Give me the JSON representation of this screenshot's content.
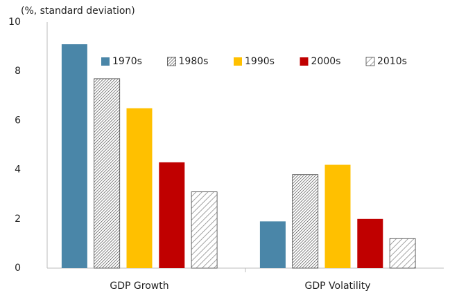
{
  "chart_data": {
    "type": "bar",
    "ylabel": "(%, standard deviation)",
    "categories": [
      "GDP Growth",
      "GDP Volatility"
    ],
    "series": [
      {
        "name": "1970s",
        "color": "#4a86a8",
        "pattern": "solid",
        "values": [
          9.1,
          1.9
        ]
      },
      {
        "name": "1980s",
        "color": "#333333",
        "pattern": "dense-hatch",
        "values": [
          7.7,
          3.8
        ]
      },
      {
        "name": "1990s",
        "color": "#ffc000",
        "pattern": "solid",
        "values": [
          6.5,
          4.2
        ]
      },
      {
        "name": "2000s",
        "color": "#c00000",
        "pattern": "solid",
        "values": [
          4.3,
          2.0
        ]
      },
      {
        "name": "2010s",
        "color": "#888888",
        "pattern": "wide-hatch",
        "values": [
          3.1,
          1.2
        ]
      }
    ],
    "ylim": [
      0,
      10
    ],
    "yticks": [
      0,
      2,
      4,
      6,
      8,
      10
    ],
    "grid": false,
    "legend": "top"
  }
}
